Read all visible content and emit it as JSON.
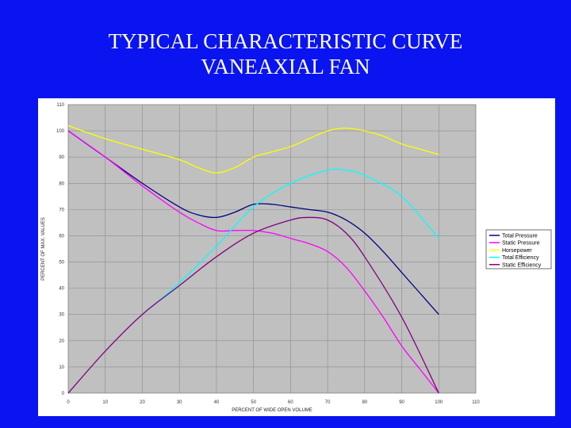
{
  "slide": {
    "title_line1": "TYPICAL CHARACTERISTIC CURVE",
    "title_line2": "VANEAXIAL FAN"
  },
  "colors": {
    "background": "#0a14f0",
    "chart_panel": "#ffffff",
    "plot_area": "#c0c0c0",
    "gridline": "#8c8c8c"
  },
  "chart_data": {
    "type": "line",
    "title": "",
    "xlabel": "PERCENT OF WIDE OPEN VOLUME",
    "ylabel": "PERCENT OF MAX. VALUES",
    "xlim": [
      0,
      110
    ],
    "ylim": [
      0,
      110
    ],
    "x_ticks": [
      "0",
      "10",
      "20",
      "30",
      "40",
      "50",
      "60",
      "70",
      "80",
      "90",
      "100",
      "110"
    ],
    "y_ticks": [
      "0",
      "10",
      "20",
      "30",
      "40",
      "50",
      "60",
      "70",
      "80",
      "90",
      "100",
      "110"
    ],
    "grid": true,
    "legend_position": "right",
    "series": [
      {
        "name": "Total Pressure",
        "color": "#000080",
        "x": [
          0,
          10,
          20,
          30,
          35,
          40,
          45,
          50,
          55,
          60,
          65,
          70,
          75,
          80,
          85,
          90,
          95,
          100
        ],
        "y": [
          100,
          90,
          80,
          71,
          68,
          67,
          69,
          72,
          72,
          71,
          70,
          69,
          66,
          61,
          54,
          46,
          38,
          30
        ]
      },
      {
        "name": "Static Pressure",
        "color": "#ff00ff",
        "x": [
          0,
          10,
          20,
          30,
          35,
          40,
          45,
          50,
          55,
          60,
          65,
          70,
          75,
          80,
          85,
          90,
          95,
          100
        ],
        "y": [
          100,
          90,
          79,
          69,
          65,
          62,
          62,
          62,
          61,
          59,
          57,
          54,
          48,
          39,
          29,
          18,
          9,
          0
        ]
      },
      {
        "name": "Horsepower",
        "color": "#ffff00",
        "x": [
          0,
          10,
          20,
          30,
          35,
          40,
          45,
          50,
          55,
          60,
          65,
          70,
          75,
          80,
          85,
          90,
          95,
          100
        ],
        "y": [
          102,
          97,
          93,
          89,
          86,
          84,
          86,
          90,
          92,
          94,
          97,
          100,
          101,
          100,
          98,
          95,
          93,
          91
        ]
      },
      {
        "name": "Total Efficiency",
        "color": "#00ffff",
        "x": [
          20,
          30,
          40,
          50,
          60,
          70,
          75,
          80,
          90,
          100
        ],
        "y": [
          30,
          42,
          56,
          71,
          80,
          85,
          85,
          83,
          75,
          59
        ]
      },
      {
        "name": "Static Efficiency",
        "color": "#800080",
        "x": [
          0,
          10,
          20,
          30,
          40,
          50,
          60,
          65,
          70,
          75,
          80,
          90,
          100
        ],
        "y": [
          0,
          16,
          30,
          41,
          52,
          61,
          66,
          67,
          66,
          61,
          52,
          29,
          0
        ]
      }
    ]
  }
}
